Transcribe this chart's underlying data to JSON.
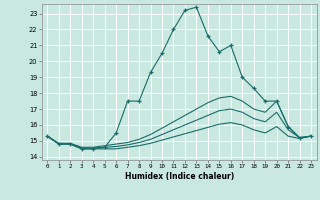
{
  "title": "",
  "xlabel": "Humidex (Indice chaleur)",
  "bg_color": "#c8e8e0",
  "line_color": "#1a6b6b",
  "grid_color": "#ffffff",
  "xlim": [
    -0.5,
    23.5
  ],
  "ylim": [
    13.8,
    23.6
  ],
  "xticks": [
    0,
    1,
    2,
    3,
    4,
    5,
    6,
    7,
    8,
    9,
    10,
    11,
    12,
    13,
    14,
    15,
    16,
    17,
    18,
    19,
    20,
    21,
    22,
    23
  ],
  "yticks": [
    14,
    15,
    16,
    17,
    18,
    19,
    20,
    21,
    22,
    23
  ],
  "lines": [
    {
      "x": [
        0,
        1,
        2,
        3,
        4,
        5,
        6,
        7,
        8,
        9,
        10,
        11,
        12,
        13,
        14,
        15,
        16,
        17,
        18,
        19,
        20,
        21,
        22,
        23
      ],
      "y": [
        15.3,
        14.8,
        14.8,
        14.5,
        14.5,
        14.6,
        15.5,
        17.5,
        17.5,
        19.3,
        20.5,
        22.0,
        23.2,
        23.4,
        21.6,
        20.6,
        21.0,
        19.0,
        18.3,
        17.5,
        17.5,
        15.9,
        15.2,
        15.3
      ],
      "marker": "+"
    },
    {
      "x": [
        0,
        1,
        2,
        3,
        4,
        5,
        6,
        7,
        8,
        9,
        10,
        11,
        12,
        13,
        14,
        15,
        16,
        17,
        18,
        19,
        20,
        21,
        22,
        23
      ],
      "y": [
        15.3,
        14.85,
        14.85,
        14.6,
        14.6,
        14.7,
        14.8,
        14.9,
        15.1,
        15.4,
        15.8,
        16.2,
        16.6,
        17.0,
        17.4,
        17.7,
        17.8,
        17.5,
        17.0,
        16.8,
        17.5,
        15.9,
        15.2,
        15.3
      ],
      "marker": null
    },
    {
      "x": [
        0,
        1,
        2,
        3,
        4,
        5,
        6,
        7,
        8,
        9,
        10,
        11,
        12,
        13,
        14,
        15,
        16,
        17,
        18,
        19,
        20,
        21,
        22,
        23
      ],
      "y": [
        15.3,
        14.82,
        14.82,
        14.55,
        14.55,
        14.6,
        14.65,
        14.75,
        14.9,
        15.1,
        15.4,
        15.7,
        16.0,
        16.3,
        16.6,
        16.9,
        17.0,
        16.8,
        16.4,
        16.2,
        16.8,
        15.7,
        15.2,
        15.3
      ],
      "marker": null
    },
    {
      "x": [
        0,
        1,
        2,
        3,
        4,
        5,
        6,
        7,
        8,
        9,
        10,
        11,
        12,
        13,
        14,
        15,
        16,
        17,
        18,
        19,
        20,
        21,
        22,
        23
      ],
      "y": [
        15.3,
        14.8,
        14.8,
        14.5,
        14.5,
        14.5,
        14.5,
        14.6,
        14.7,
        14.85,
        15.05,
        15.25,
        15.45,
        15.65,
        15.85,
        16.05,
        16.15,
        16.0,
        15.7,
        15.5,
        15.9,
        15.3,
        15.15,
        15.3
      ],
      "marker": null
    }
  ]
}
